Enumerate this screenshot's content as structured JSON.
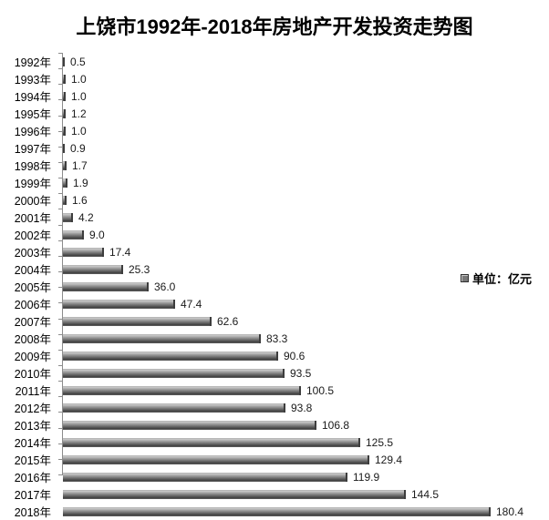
{
  "chart_data": {
    "type": "bar",
    "orientation": "horizontal",
    "title": "上饶市1992年-2018年房地产开发投资走势图",
    "categories": [
      "1992年",
      "1993年",
      "1994年",
      "1995年",
      "1996年",
      "1997年",
      "1998年",
      "1999年",
      "2000年",
      "2001年",
      "2002年",
      "2003年",
      "2004年",
      "2005年",
      "2006年",
      "2007年",
      "2008年",
      "2009年",
      "2010年",
      "2011年",
      "2012年",
      "2013年",
      "2014年",
      "2015年",
      "2016年",
      "2017年",
      "2018年"
    ],
    "values": [
      0.5,
      1.0,
      1.0,
      1.2,
      1.0,
      0.9,
      1.7,
      1.9,
      1.6,
      4.2,
      9.0,
      17.4,
      25.3,
      36.0,
      47.4,
      62.6,
      83.3,
      90.6,
      93.5,
      100.5,
      93.8,
      106.8,
      125.5,
      129.4,
      119.9,
      144.5,
      180.4
    ],
    "xlabel": "",
    "ylabel": "",
    "xlim": [
      0,
      190
    ],
    "grid": false,
    "value_labels": true,
    "value_label_decimals": 1,
    "legend": {
      "label": "单位：亿元",
      "position": "right"
    },
    "colors": {
      "bar_fill": "#787878",
      "bar_fill_dark": "#3d3d3d",
      "bar_fill_light": "#c9c9c9",
      "axis": "#8c8c8c",
      "text": "#000000",
      "background": "#ffffff"
    }
  }
}
